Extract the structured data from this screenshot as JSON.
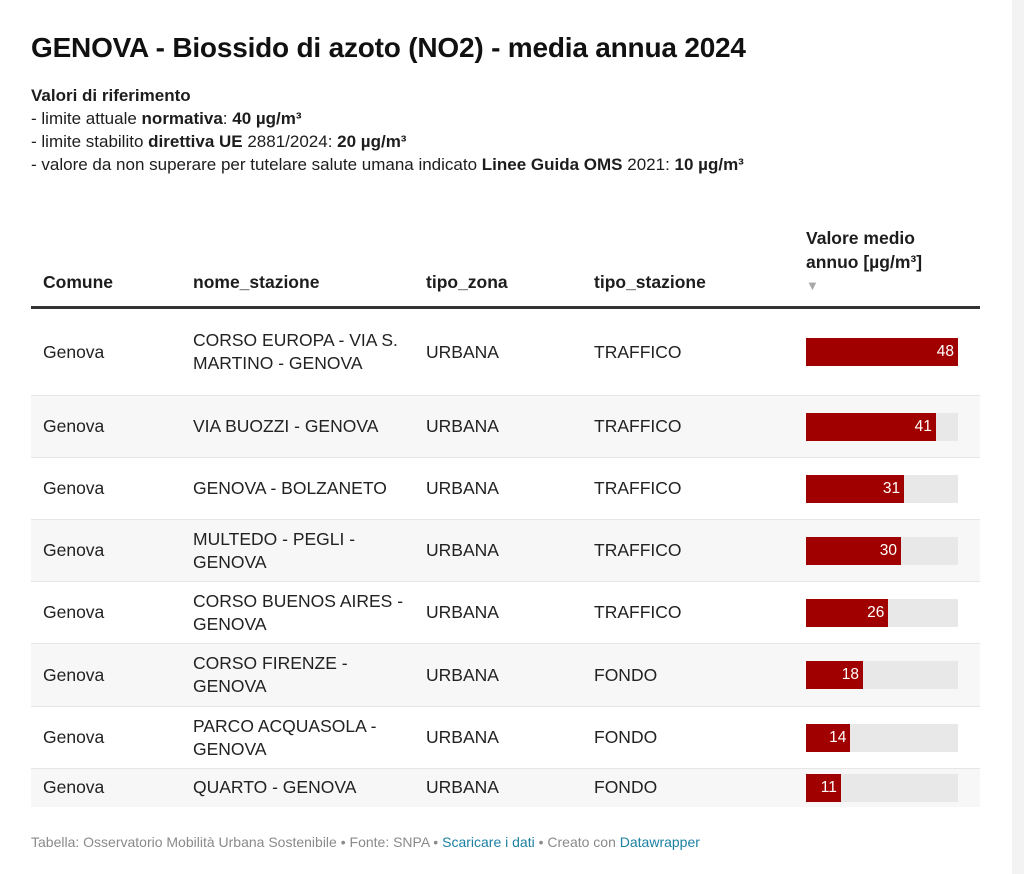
{
  "title": "GENOVA - Biossido di azoto (NO2) - media annua 2024",
  "intro": {
    "heading": "Valori di riferimento",
    "lines": [
      {
        "pre": "- limite attuale ",
        "bold1": "normativa",
        "mid": ": ",
        "bold2": "40 µg/m³",
        "post": ""
      },
      {
        "pre": "- limite stabilito ",
        "bold1": "direttiva UE",
        "mid": " 2881/2024: ",
        "bold2": "20 µg/m³",
        "post": ""
      },
      {
        "pre": "- valore da non superare per tutelare salute umana indicato ",
        "bold1": "Linee Guida OMS",
        "mid": " 2021: ",
        "bold2": "10 µg/m³",
        "post": ""
      }
    ]
  },
  "table": {
    "headers": {
      "comune": "Comune",
      "nome_stazione": "nome_stazione",
      "tipo_zona": "tipo_zona",
      "tipo_stazione": "tipo_stazione",
      "valore": "Valore medio annuo [µg/m³]",
      "sort_indicator": "▼"
    }
  },
  "chart_data": {
    "type": "table",
    "title": "GENOVA - Biossido di azoto (NO2) - media annua 2024",
    "columns": [
      "Comune",
      "nome_stazione",
      "tipo_zona",
      "tipo_stazione",
      "Valore medio annuo [µg/m³]"
    ],
    "bar_column": "Valore medio annuo [µg/m³]",
    "bar_max": 48,
    "bar_color": "#a00000",
    "track_color": "#e8e8e8",
    "sorted_by": "Valore medio annuo [µg/m³]",
    "sort_order": "descending",
    "rows": [
      {
        "comune": "Genova",
        "nome_stazione": "CORSO EUROPA - VIA S. MARTINO - GENOVA",
        "tipo_zona": "URBANA",
        "tipo_stazione": "TRAFFICO",
        "valore": 48
      },
      {
        "comune": "Genova",
        "nome_stazione": "VIA BUOZZI - GENOVA",
        "tipo_zona": "URBANA",
        "tipo_stazione": "TRAFFICO",
        "valore": 41
      },
      {
        "comune": "Genova",
        "nome_stazione": "GENOVA - BOLZANETO",
        "tipo_zona": "URBANA",
        "tipo_stazione": "TRAFFICO",
        "valore": 31
      },
      {
        "comune": "Genova",
        "nome_stazione": "MULTEDO - PEGLI - GENOVA",
        "tipo_zona": "URBANA",
        "tipo_stazione": "TRAFFICO",
        "valore": 30
      },
      {
        "comune": "Genova",
        "nome_stazione": "CORSO BUENOS AIRES - GENOVA",
        "tipo_zona": "URBANA",
        "tipo_stazione": "TRAFFICO",
        "valore": 26
      },
      {
        "comune": "Genova",
        "nome_stazione": "CORSO FIRENZE - GENOVA",
        "tipo_zona": "URBANA",
        "tipo_stazione": "FONDO",
        "valore": 18
      },
      {
        "comune": "Genova",
        "nome_stazione": "PARCO ACQUASOLA - GENOVA",
        "tipo_zona": "URBANA",
        "tipo_stazione": "FONDO",
        "valore": 14
      },
      {
        "comune": "Genova",
        "nome_stazione": "QUARTO - GENOVA",
        "tipo_zona": "URBANA",
        "tipo_stazione": "FONDO",
        "valore": 11
      }
    ]
  },
  "footer": {
    "credit": "Tabella: Osservatorio Mobilità Urbana Sostenibile",
    "separator": " • ",
    "source": "Fonte: SNPA",
    "download_link": "Scaricare i dati",
    "created_with": "Creato con ",
    "datawrapper_link": "Datawrapper",
    "link_color": "#1d81a2"
  }
}
